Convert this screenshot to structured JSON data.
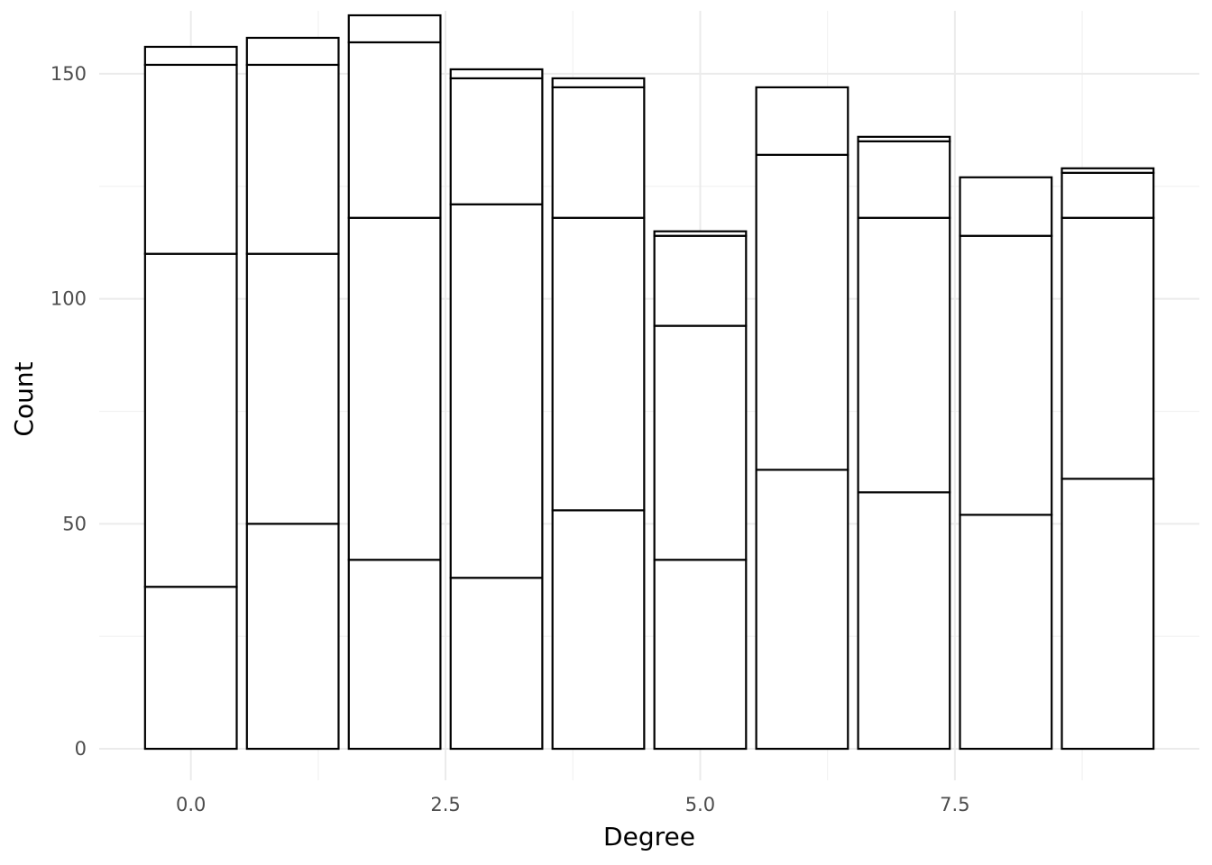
{
  "chart_data": {
    "type": "bar",
    "stacked": true,
    "title": "",
    "xlabel": "Degree",
    "ylabel": "Count",
    "xlim": [
      -0.9,
      9.9
    ],
    "ylim": [
      -7,
      164
    ],
    "x_ticks": [
      0.0,
      2.5,
      5.0,
      7.5
    ],
    "x_tick_labels": [
      "0.0",
      "2.5",
      "5.0",
      "7.5"
    ],
    "y_ticks": [
      0,
      50,
      100,
      150
    ],
    "y_tick_labels": [
      "0",
      "50",
      "100",
      "150"
    ],
    "grid": true,
    "legend": "none",
    "x": [
      0,
      1,
      2,
      3,
      4,
      5,
      6,
      7,
      8,
      9
    ],
    "stack_boundaries": [
      [
        36,
        110,
        152,
        156
      ],
      [
        50,
        110,
        152,
        158
      ],
      [
        42,
        118,
        157,
        163
      ],
      [
        38,
        121,
        149,
        151
      ],
      [
        53,
        118,
        147,
        149
      ],
      [
        42,
        94,
        114,
        115
      ],
      [
        62,
        132,
        147
      ],
      [
        57,
        118,
        135,
        136
      ],
      [
        52,
        114,
        127
      ],
      [
        60,
        118,
        128,
        129
      ]
    ],
    "totals": [
      156,
      158,
      163,
      151,
      149,
      115,
      147,
      136,
      127,
      129
    ]
  }
}
